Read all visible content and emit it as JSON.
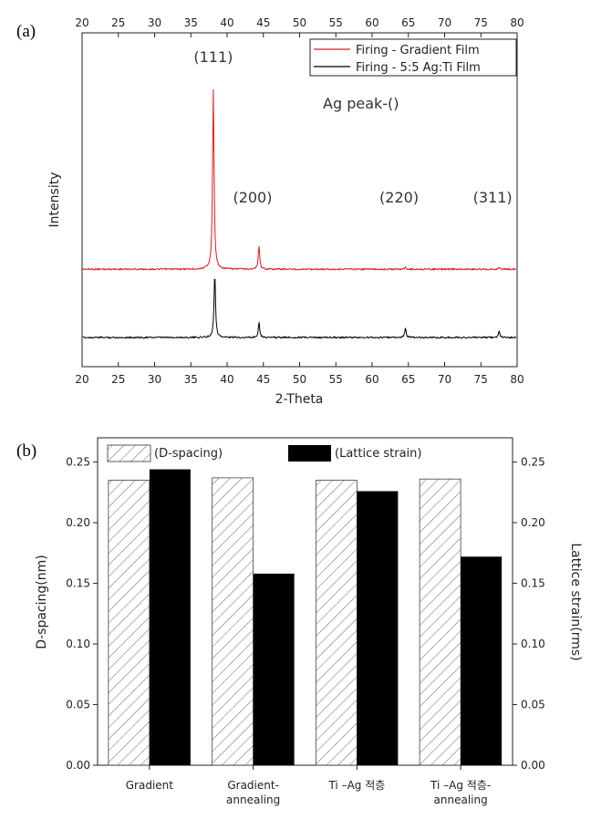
{
  "chart_data": [
    {
      "panel": "(a)",
      "type": "line",
      "xlabel": "2-Theta",
      "ylabel": "Intensity",
      "xlim": [
        20,
        80
      ],
      "xticks": [
        20,
        25,
        30,
        35,
        40,
        45,
        50,
        55,
        60,
        65,
        70,
        75,
        80
      ],
      "annotation": "Ag peak-()",
      "legend_position": "top-right",
      "peaks": [
        {
          "label": "(111)",
          "x": 38.1
        },
        {
          "label": "(200)",
          "x": 44.4
        },
        {
          "label": "(220)",
          "x": 64.6
        },
        {
          "label": "(311)",
          "x": 77.5
        }
      ],
      "series": [
        {
          "name": "Firing - Gradient Film",
          "color": "#e31a1c",
          "baseline": 0.38,
          "peaks": [
            {
              "x": 38.1,
              "h": 1.0
            },
            {
              "x": 44.4,
              "h": 0.13
            },
            {
              "x": 64.6,
              "h": 0.01
            },
            {
              "x": 77.5,
              "h": 0.01
            }
          ]
        },
        {
          "name": "Firing - 5:5 Ag:Ti Film",
          "color": "#000000",
          "baseline": 0.0,
          "peaks": [
            {
              "x": 38.3,
              "h": 0.36
            },
            {
              "x": 44.4,
              "h": 0.085
            },
            {
              "x": 64.6,
              "h": 0.05
            },
            {
              "x": 77.5,
              "h": 0.035
            }
          ]
        }
      ]
    },
    {
      "panel": "(b)",
      "type": "bar",
      "categories": [
        "Gradient",
        "Gradient-annealing",
        "Ti –Ag 적층",
        "Ti –Ag 적층-annealing"
      ],
      "category_lines": [
        [
          "Gradient"
        ],
        [
          "Gradient-",
          "annealing"
        ],
        [
          "Ti –Ag 적층"
        ],
        [
          "Ti –Ag 적층-",
          "annealing"
        ]
      ],
      "ylabel": "D-spacing(nm)",
      "y2label": "Lattice strain(rms)",
      "ylim": [
        0,
        0.27
      ],
      "y2lim": [
        0,
        0.27
      ],
      "yticks": [
        "0.00",
        "0.05",
        "0.10",
        "0.15",
        "0.20",
        "0.25"
      ],
      "legend_position": "top-left",
      "series": [
        {
          "name": "(D-spacing)",
          "axis": "left",
          "pattern": "hatched",
          "values": [
            0.235,
            0.237,
            0.235,
            0.236
          ]
        },
        {
          "name": "(Lattice strain)",
          "axis": "right",
          "pattern": "solid-black",
          "values": [
            0.244,
            0.158,
            0.226,
            0.172
          ]
        }
      ]
    }
  ]
}
